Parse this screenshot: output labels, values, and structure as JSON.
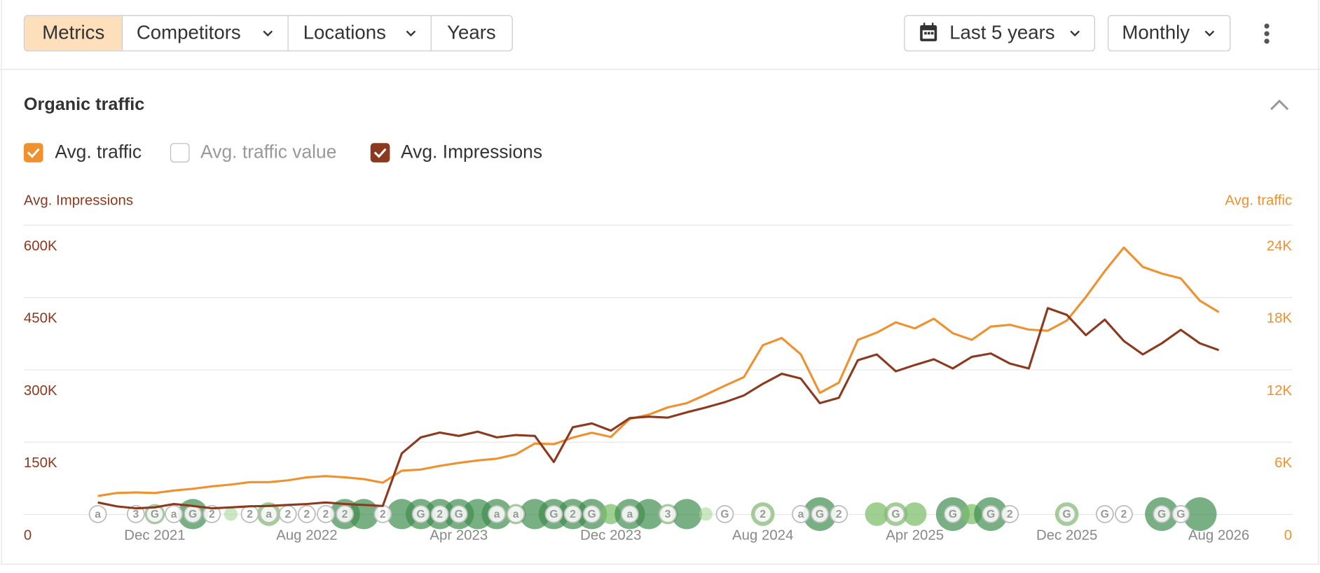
{
  "toolbar": {
    "tabs": [
      "Metrics",
      "Competitors",
      "Locations",
      "Years"
    ],
    "period": "Last 5 years",
    "interval": "Monthly"
  },
  "chart_data": {
    "type": "line",
    "title": "Organic traffic",
    "inactive_series": [
      "Avg. traffic value"
    ],
    "ylabel": "Avg. Impressions",
    "y2label": "Avg. traffic",
    "x": [
      null,
      null,
      null,
      "Dec 2021",
      null,
      null,
      null,
      null,
      null,
      null,
      null,
      "Aug 2022",
      null,
      null,
      null,
      null,
      null,
      null,
      null,
      "Apr 2023",
      null,
      null,
      null,
      null,
      null,
      null,
      null,
      "Dec 2023",
      null,
      null,
      null,
      null,
      null,
      null,
      null,
      "Aug 2024",
      null,
      null,
      null,
      null,
      null,
      null,
      null,
      "Apr 2025",
      null,
      null,
      null,
      null,
      null,
      null,
      null,
      "Dec 2025",
      null,
      null,
      null,
      null,
      null,
      null,
      null,
      "Aug 2026"
    ],
    "ylim": [
      0,
      600000
    ],
    "yticks": [
      0,
      {
        "value": 150000,
        "label": "150K"
      },
      {
        "value": 300000,
        "label": "300K"
      },
      {
        "value": 450000,
        "label": "450K"
      },
      {
        "value": 600000,
        "label": "600K"
      }
    ],
    "y2lim": [
      0,
      24000
    ],
    "y2ticks": [
      0,
      {
        "value": 6000,
        "label": "6K"
      },
      {
        "value": 12000,
        "label": "12K"
      },
      {
        "value": 18000,
        "label": "18K"
      },
      {
        "value": 24000,
        "label": "24K"
      }
    ],
    "grid": true,
    "series": [
      {
        "name": "Avg. traffic",
        "color": "#f0912f",
        "axis": "y2",
        "values": [
          1500,
          1750,
          1800,
          1750,
          1950,
          2100,
          2300,
          2450,
          2650,
          2650,
          2800,
          3050,
          3150,
          3050,
          2900,
          2600,
          3600,
          3700,
          4000,
          4250,
          4450,
          4600,
          4950,
          5850,
          5800,
          6350,
          6750,
          6400,
          7900,
          8250,
          8850,
          9200,
          9900,
          10650,
          11350,
          14000,
          14600,
          13250,
          10050,
          10900,
          14450,
          15050,
          15900,
          15400,
          16200,
          15000,
          14450,
          15550,
          15700,
          15300,
          15200,
          16050,
          18000,
          20150,
          22100,
          20500,
          19950,
          19550,
          17700,
          16750
        ]
      },
      {
        "name": "Avg. Impressions",
        "color": "#8b3a1f",
        "axis": "y",
        "values": [
          24000,
          16000,
          12000,
          14000,
          21000,
          17000,
          12000,
          14000,
          16000,
          17000,
          19000,
          21000,
          24000,
          21000,
          19000,
          17000,
          126000,
          159000,
          169000,
          162000,
          171000,
          159000,
          164000,
          162000,
          108000,
          180000,
          188000,
          173000,
          199000,
          202000,
          200000,
          211000,
          221000,
          232000,
          246000,
          270000,
          291000,
          281000,
          230000,
          241000,
          319000,
          331000,
          296000,
          309000,
          321000,
          302000,
          326000,
          333000,
          312000,
          302000,
          427000,
          413000,
          371000,
          403000,
          359000,
          331000,
          354000,
          382000,
          354000,
          340000
        ]
      }
    ],
    "annotations": [
      "a",
      "3",
      "G",
      "a",
      "G",
      "2",
      "2",
      "a",
      "2",
      "2",
      "2",
      "2",
      "2",
      "G",
      "2",
      "G",
      "a",
      "a",
      "G",
      "2",
      "G",
      "a",
      "3",
      "G",
      "2",
      "a",
      "G",
      "2",
      "G",
      "G",
      "G",
      "2",
      "G",
      "G",
      "2",
      "G",
      "G"
    ]
  }
}
